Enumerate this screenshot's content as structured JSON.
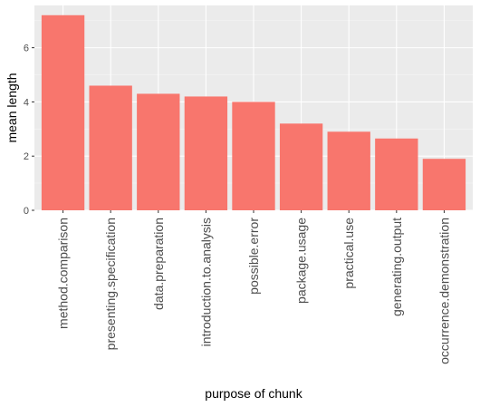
{
  "chart_data": {
    "type": "bar",
    "title": "",
    "xlabel": "purpose of chunk",
    "ylabel": "mean length",
    "categories": [
      "method.comparison",
      "presenting.specification",
      "data.preparation",
      "introduction.to.analysis",
      "possible.error",
      "package.usage",
      "practical.use",
      "generating.output",
      "occurrence.demonstration"
    ],
    "values": [
      7.2,
      4.6,
      4.3,
      4.2,
      4.0,
      3.2,
      2.9,
      2.65,
      1.9
    ],
    "ylim": [
      0,
      7.56
    ],
    "yticks": [
      0,
      2,
      4,
      6
    ],
    "grid": true,
    "legend": "none",
    "colors": {
      "bar": "#f8766d",
      "panel": "#ebebeb",
      "grid_major": "#ffffff"
    }
  }
}
